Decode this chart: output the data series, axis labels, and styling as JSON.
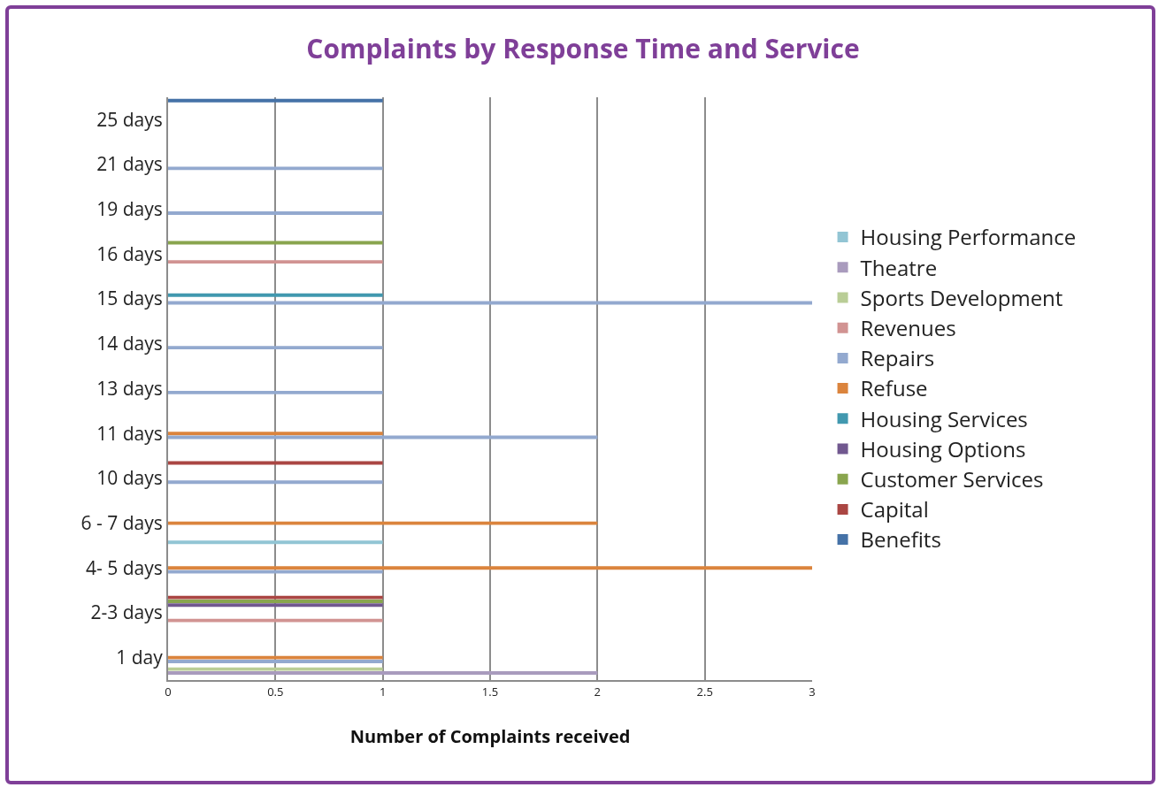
{
  "chart_data": {
    "type": "bar",
    "orientation": "horizontal",
    "title": "Complaints by Response Time and Service",
    "xlabel": "Number of Complaints received",
    "categories": [
      "25 days",
      "21 days",
      "19 days",
      "16 days",
      "15 days",
      "14 days",
      "13 days",
      "11 days",
      "10 days",
      "6 - 7 days",
      "4- 5 days",
      "2-3 days",
      "1 day"
    ],
    "series": [
      {
        "name": "Benefits",
        "color": "#4572a7",
        "values": [
          1,
          null,
          null,
          null,
          null,
          null,
          null,
          null,
          null,
          null,
          null,
          null,
          null
        ]
      },
      {
        "name": "Capital",
        "color": "#aa4643",
        "values": [
          null,
          null,
          null,
          null,
          null,
          null,
          null,
          null,
          1,
          null,
          null,
          1,
          null
        ]
      },
      {
        "name": "Customer Services",
        "color": "#89a54e",
        "values": [
          null,
          null,
          null,
          1,
          null,
          null,
          null,
          null,
          null,
          null,
          null,
          1,
          null
        ]
      },
      {
        "name": "Housing Options",
        "color": "#71588f",
        "values": [
          null,
          null,
          null,
          null,
          null,
          null,
          null,
          null,
          null,
          null,
          null,
          1,
          null
        ]
      },
      {
        "name": "Housing Services",
        "color": "#4198af",
        "values": [
          null,
          null,
          null,
          null,
          1,
          null,
          null,
          null,
          null,
          null,
          null,
          null,
          null
        ]
      },
      {
        "name": "Refuse",
        "color": "#db843d",
        "values": [
          null,
          null,
          null,
          null,
          null,
          null,
          null,
          1,
          null,
          2,
          3,
          null,
          1
        ]
      },
      {
        "name": "Repairs",
        "color": "#93a9cf",
        "values": [
          null,
          1,
          1,
          null,
          3,
          1,
          1,
          2,
          1,
          null,
          1,
          null,
          1
        ]
      },
      {
        "name": "Revenues",
        "color": "#d19392",
        "values": [
          null,
          null,
          null,
          1,
          null,
          null,
          null,
          null,
          null,
          null,
          null,
          1,
          null
        ]
      },
      {
        "name": "Sports Development",
        "color": "#b9cd96",
        "values": [
          null,
          null,
          null,
          null,
          null,
          null,
          null,
          null,
          null,
          null,
          null,
          null,
          1
        ]
      },
      {
        "name": "Theatre",
        "color": "#a99bbd",
        "values": [
          null,
          null,
          null,
          null,
          null,
          null,
          null,
          null,
          null,
          null,
          null,
          null,
          2
        ]
      },
      {
        "name": "Housing Performance",
        "color": "#92c5d4",
        "values": [
          null,
          null,
          null,
          null,
          null,
          null,
          null,
          null,
          null,
          1,
          null,
          null,
          null
        ]
      }
    ],
    "xlim": [
      0,
      3
    ],
    "xticks": [
      0,
      0.5,
      1,
      1.5,
      2,
      2.5,
      3
    ],
    "grid": "x",
    "legend": "right"
  }
}
